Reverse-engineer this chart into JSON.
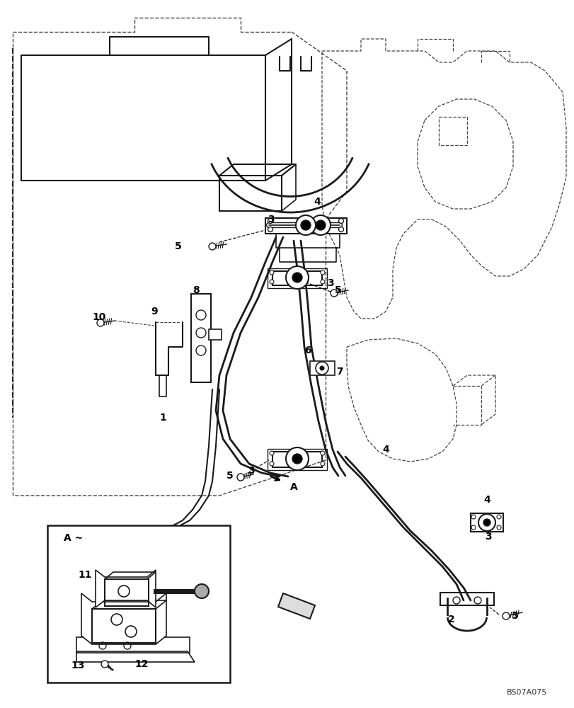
{
  "bg_color": "#ffffff",
  "line_color": "#1a1a1a",
  "dashed_color": "#444444",
  "text_color": "#000000",
  "fig_width": 8.12,
  "fig_height": 10.0,
  "watermark": "BS07A075"
}
